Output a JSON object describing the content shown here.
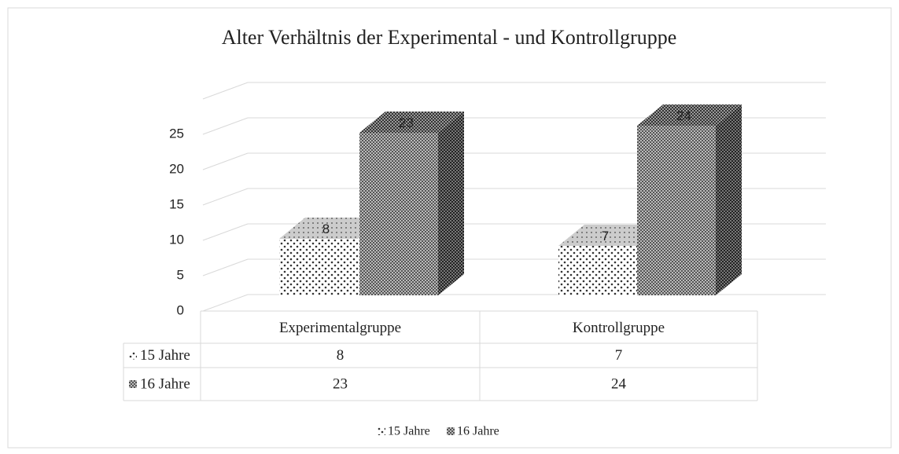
{
  "chart_data": {
    "type": "bar3d",
    "title": "Alter Verhältnis der Experimental - und Kontrollgruppe",
    "categories": [
      "Experimentalgruppe",
      "Kontrollgruppe"
    ],
    "series": [
      {
        "name": "15 Jahre",
        "values": [
          8,
          7
        ]
      },
      {
        "name": "16 Jahre",
        "values": [
          23,
          24
        ]
      }
    ],
    "ylim": [
      0,
      30
    ],
    "yticks": [
      0,
      5,
      10,
      15,
      20,
      25
    ],
    "grid": true,
    "legend": "bottom",
    "data_table": true
  }
}
